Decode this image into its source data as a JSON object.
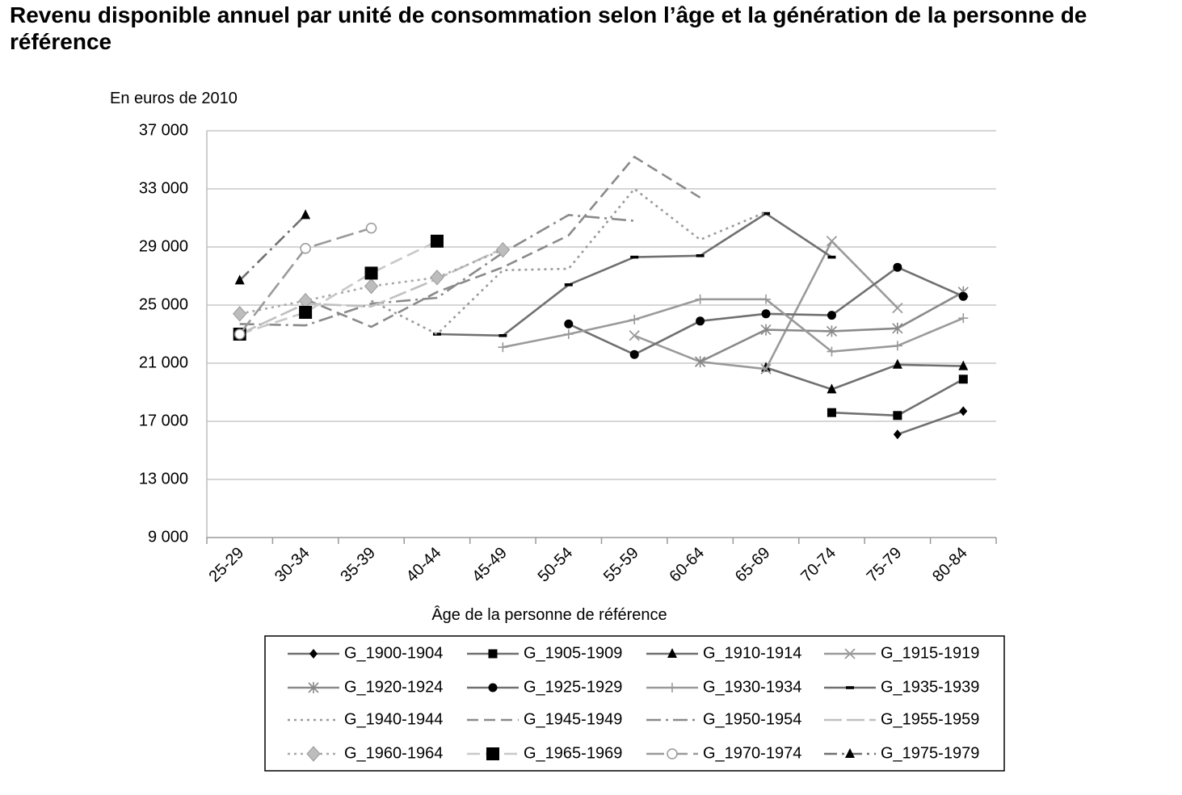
{
  "chart_data": {
    "type": "line",
    "title": "Revenu disponible annuel par unité de consommation selon l’âge et la génération de la personne de référence",
    "ylabel": "En euros de 2010",
    "xlabel": "Âge de la personne de référence",
    "ylim": [
      9000,
      37000
    ],
    "yticks": [
      9000,
      13000,
      17000,
      21000,
      25000,
      29000,
      33000,
      37000
    ],
    "ytick_labels": [
      "9 000",
      "13 000",
      "17 000",
      "21 000",
      "25 000",
      "29 000",
      "33 000",
      "37 000"
    ],
    "categories": [
      "25-29",
      "30-34",
      "35-39",
      "40-44",
      "45-49",
      "50-54",
      "55-59",
      "60-64",
      "65-69",
      "70-74",
      "75-79",
      "80-84"
    ],
    "grid": true,
    "legend_position": "bottom",
    "series": [
      {
        "name": "G_1900-1904",
        "color": "#707070",
        "dash": "",
        "marker": "diamond",
        "values": [
          null,
          null,
          null,
          null,
          null,
          null,
          null,
          null,
          null,
          null,
          16100,
          17700
        ]
      },
      {
        "name": "G_1905-1909",
        "color": "#707070",
        "dash": "",
        "marker": "square",
        "values": [
          null,
          null,
          null,
          null,
          null,
          null,
          null,
          null,
          null,
          17600,
          17400,
          19900
        ]
      },
      {
        "name": "G_1910-1914",
        "color": "#707070",
        "dash": "",
        "marker": "triangle",
        "values": [
          null,
          null,
          null,
          null,
          null,
          null,
          null,
          null,
          20700,
          19200,
          20900,
          20800
        ]
      },
      {
        "name": "G_1915-1919",
        "color": "#9a9a9a",
        "dash": "",
        "marker": "x",
        "values": [
          null,
          null,
          null,
          null,
          null,
          null,
          22900,
          21100,
          20600,
          29400,
          24800,
          null
        ]
      },
      {
        "name": "G_1920-1924",
        "color": "#8a8a8a",
        "dash": "",
        "marker": "star",
        "values": [
          null,
          null,
          null,
          null,
          null,
          null,
          null,
          21100,
          23300,
          23200,
          23400,
          25900
        ]
      },
      {
        "name": "G_1925-1929",
        "color": "#707070",
        "dash": "",
        "marker": "circle",
        "values": [
          null,
          null,
          null,
          null,
          null,
          23700,
          21600,
          23900,
          24400,
          24300,
          27600,
          25600
        ]
      },
      {
        "name": "G_1930-1934",
        "color": "#9a9a9a",
        "dash": "",
        "marker": "plus",
        "values": [
          null,
          null,
          null,
          null,
          22100,
          23000,
          24000,
          25400,
          25400,
          21800,
          22200,
          24100
        ]
      },
      {
        "name": "G_1935-1939",
        "color": "#707070",
        "dash": "",
        "marker": "dash",
        "values": [
          null,
          null,
          null,
          23000,
          22900,
          26400,
          28300,
          28400,
          31300,
          28300,
          null,
          null
        ]
      },
      {
        "name": "G_1940-1944",
        "color": "#9a9a9a",
        "dash": "3 5",
        "marker": "none",
        "values": [
          null,
          null,
          25300,
          23000,
          27400,
          27500,
          33000,
          29500,
          31400,
          null,
          null,
          null
        ]
      },
      {
        "name": "G_1945-1949",
        "color": "#8a8a8a",
        "dash": "14 7",
        "marker": "none",
        "values": [
          null,
          25400,
          23500,
          25900,
          27600,
          29800,
          35200,
          32400,
          null,
          null,
          null,
          null
        ]
      },
      {
        "name": "G_1950-1954",
        "color": "#8a8a8a",
        "dash": "18 6 3 6",
        "marker": "none",
        "values": [
          23700,
          23600,
          25100,
          25500,
          28600,
          31200,
          30800,
          null,
          null,
          null,
          null,
          null
        ]
      },
      {
        "name": "G_1955-1959",
        "color": "#c0c0c0",
        "dash": "22 6",
        "marker": "none",
        "values": [
          23000,
          25100,
          24900,
          26800,
          28900,
          null,
          null,
          null,
          null,
          null,
          null,
          null
        ]
      },
      {
        "name": "G_1960-1964",
        "color": "#a8a8a8",
        "dash": "3 5",
        "marker": "diamond-gray",
        "values": [
          24400,
          25300,
          26300,
          26900,
          28800,
          null,
          null,
          null,
          null,
          null,
          null,
          null
        ]
      },
      {
        "name": "G_1965-1969",
        "color": "#c8c8c8",
        "dash": "16 7",
        "marker": "square-big",
        "values": [
          23000,
          24500,
          27200,
          29400,
          null,
          null,
          null,
          null,
          null,
          null,
          null,
          null
        ]
      },
      {
        "name": "G_1970-1974",
        "color": "#9a9a9a",
        "dash": "22 7",
        "marker": "circle-open",
        "values": [
          23000,
          28900,
          30300,
          null,
          null,
          null,
          null,
          null,
          null,
          null,
          null,
          null
        ]
      },
      {
        "name": "G_1975-1979",
        "color": "#707070",
        "dash": "16 6 3 6",
        "marker": "triangle",
        "values": [
          26700,
          31200,
          null,
          null,
          null,
          null,
          null,
          null,
          null,
          null,
          null,
          null
        ]
      }
    ]
  }
}
